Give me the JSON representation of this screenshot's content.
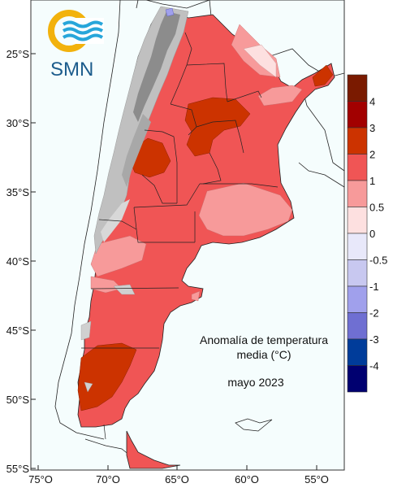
{
  "logo": {
    "text": "SMN"
  },
  "title": {
    "line1": "Anomalía de temperatura",
    "line2": "media (°C)"
  },
  "period": "mayo 2023",
  "lat_ticks": [
    "25°S",
    "30°S",
    "35°S",
    "40°S",
    "45°S",
    "50°S",
    "55°S"
  ],
  "lon_ticks": [
    "75°O",
    "70°O",
    "65°O",
    "60°O",
    "55°O"
  ],
  "legend": {
    "labels": [
      "4",
      "3",
      "2",
      "1",
      "0.5",
      "0",
      "-0.5",
      "-1",
      "-2",
      "-3",
      "-4"
    ],
    "colors": [
      "#7a1a00",
      "#a20000",
      "#cc3300",
      "#f05555",
      "#f79a9a",
      "#fde0e0",
      "#e8e8fa",
      "#c8c8f0",
      "#a0a0ec",
      "#6f6fd2",
      "#003c9a",
      "#000070"
    ]
  },
  "colors": {
    "anom_1_2": "#f05555",
    "anom_05_1": "#f79a9a",
    "anom_0_05": "#fde0e0",
    "anom_2_3": "#cc3300",
    "anom_neg": "#a0a0ec",
    "no_data": "#c0c0c0",
    "no_data_dark": "#8c8c8c",
    "ocean": "#f5fdfd",
    "logo_yellow": "#f2b20c",
    "logo_blue": "#27a6da",
    "logo_text": "#1c5c8c"
  }
}
